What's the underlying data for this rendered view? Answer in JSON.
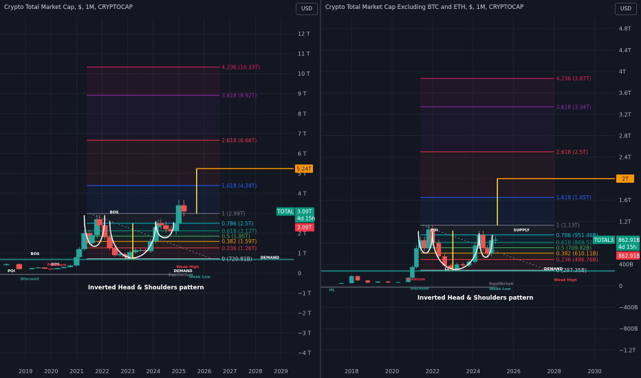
{
  "colors": {
    "background": "#131722",
    "grid": "#1e222d",
    "text": "#b2b5be",
    "up": "#26a69a",
    "down": "#ef5350",
    "fib_0": "#d1d4dc",
    "fib_0236": "#f23645",
    "fib_0382": "#ff9800",
    "fib_05": "#4caf50",
    "fib_0618": "#089981",
    "fib_0786": "#00bcd4",
    "fib_1": "#787b86",
    "fib_1618": "#2962ff",
    "fib_2618": "#f23645",
    "fib_3618": "#9c27b0",
    "fib_4236": "#e91e63",
    "target": "#ff9800",
    "pattern_arc": "#ffffff",
    "pattern_bar": "#ffeb3b"
  },
  "chart_data": [
    {
      "type": "candlestick",
      "title": "Crypto Total Market Cap, $, 1M, CRYPTOCAP",
      "currency_button": "USD",
      "x_ticks": [
        "2019",
        "2020",
        "2021",
        "2022",
        "2023",
        "2024",
        "2025",
        "2026",
        "2027",
        "2028",
        "2029"
      ],
      "y_ticks": [
        "12 T",
        "11 T",
        "10 T",
        "9 T",
        "8 T",
        "7 T",
        "6 T",
        "5 T",
        "4 T",
        "3 T",
        "2 T",
        "1 T",
        "0",
        "−1 T",
        "−2 T",
        "−3 T",
        "−4 T"
      ],
      "xlim": [
        2018.0,
        2029.5
      ],
      "ylim": [
        -4.4,
        12.8
      ],
      "y_unit": "T",
      "series": [
        {
          "name": "TOTAL",
          "x": [
            2018.25,
            2018.75,
            2019.25,
            2019.5,
            2019.75,
            2020.0,
            2020.25,
            2020.5,
            2020.75,
            2021.0,
            2021.1,
            2021.3,
            2021.5,
            2021.6,
            2021.8,
            2021.9,
            2022.1,
            2022.3,
            2022.5,
            2022.7,
            2022.9,
            2023.1,
            2023.3,
            2023.5,
            2023.7,
            2023.9,
            2024.1,
            2024.2,
            2024.3,
            2024.5,
            2024.7,
            2024.9,
            2025.0,
            2025.2
          ],
          "values": [
            0.45,
            0.2,
            0.25,
            0.28,
            0.22,
            0.2,
            0.25,
            0.3,
            0.38,
            0.8,
            1.2,
            2.0,
            1.5,
            1.9,
            2.7,
            2.4,
            1.8,
            1.25,
            0.9,
            0.95,
            0.82,
            1.05,
            1.15,
            1.15,
            1.1,
            1.6,
            2.3,
            2.5,
            2.4,
            2.2,
            2.1,
            2.5,
            3.4,
            3.09
          ]
        }
      ],
      "fib_levels": [
        {
          "label": "4.236 (10.33T)",
          "value": 10.33,
          "color": "#e91e63"
        },
        {
          "label": "3.618 (8.92T)",
          "value": 8.92,
          "color": "#9c27b0"
        },
        {
          "label": "2.618 (6.66T)",
          "value": 6.66,
          "color": "#f23645"
        },
        {
          "label": "1.618 (4.39T)",
          "value": 4.39,
          "color": "#2962ff"
        },
        {
          "label": "1 (2.99T)",
          "value": 2.99,
          "color": "#787b86"
        },
        {
          "label": "0.786 (2.5T)",
          "value": 2.5,
          "color": "#00bcd4"
        },
        {
          "label": "0.618 (2.12T)",
          "value": 2.12,
          "color": "#089981"
        },
        {
          "label": "0.5 (1.85T)",
          "value": 1.85,
          "color": "#4caf50"
        },
        {
          "label": "0.382 (1.59T)",
          "value": 1.59,
          "color": "#ff9800"
        },
        {
          "label": "0.236 (1.26T)",
          "value": 1.26,
          "color": "#f23645"
        },
        {
          "label": "0 (720.81B)",
          "value": 0.72,
          "color": "#d1d4dc"
        }
      ],
      "fib_x_range": [
        2021.4,
        2026.6
      ],
      "target": {
        "label": "5.24T",
        "value": 5.24,
        "x_from": 2025.7,
        "x_to": 2029.5,
        "drop_to": 2.99
      },
      "pattern_bar": {
        "x": 2023.2,
        "from": 0.72,
        "to": 2.5
      },
      "shoulders": [
        {
          "from": 2021.3,
          "to": 2022.1,
          "top": 2.9,
          "bottom": 1.3
        },
        {
          "from": 2022.3,
          "to": 2024.1,
          "top": 2.6,
          "bottom": 0.72
        },
        {
          "from": 2024.1,
          "to": 2024.8,
          "top": 2.55,
          "bottom": 1.75
        }
      ],
      "zones": [
        {
          "label": "BOS",
          "x": 2019.2,
          "y": 0.9,
          "color": "#ffffff"
        },
        {
          "label": "BOS",
          "x": 2020.0,
          "y": 0.38,
          "color": "#ffffff"
        },
        {
          "label": "BOS",
          "x": 2022.3,
          "y": 2.99,
          "color": "#ffffff"
        },
        {
          "label": "POI",
          "x": 2018.3,
          "y": 0.05,
          "color": "#ffffff"
        },
        {
          "label": "Premium",
          "x": 2019.85,
          "y": 0.35,
          "color": "#f23645"
        },
        {
          "label": "Discount",
          "x": 2018.8,
          "y": -0.35,
          "color": "#26a69a"
        },
        {
          "label": "DEMAND",
          "x": 2024.8,
          "y": 0.05,
          "color": "#ffffff"
        },
        {
          "label": "DEMAND",
          "x": 2028.2,
          "y": 0.72,
          "color": "#ffffff"
        },
        {
          "label": "Equilibrium",
          "x": 2024.6,
          "y": -0.15,
          "color": "#787b86"
        },
        {
          "label": "Weak High",
          "x": 2024.9,
          "y": 0.25,
          "color": "#f23645"
        },
        {
          "label": "Weak Low",
          "x": 2025.4,
          "y": -0.25,
          "color": "#26a69a"
        },
        {
          "label": "LL",
          "x": 2022.9,
          "y": 0.72,
          "color": "#ffffff"
        }
      ],
      "pattern_label": "Inverted Head & Shoulders pattern",
      "last_price": {
        "symbol": "TOTAL",
        "value": "3.09T",
        "countdown": "4d 15h",
        "close": "3.09T"
      }
    },
    {
      "type": "candlestick",
      "title": "Crypto Total Market Cap Excluding BTC and ETH, $, 1M, CRYPTOCAP",
      "currency_button": "USD",
      "x_ticks": [
        "2018",
        "2020",
        "2022",
        "2024",
        "2026",
        "2028",
        "2030"
      ],
      "y_ticks": [
        "4.8T",
        "4.4T",
        "4T",
        "3.6T",
        "3.2T",
        "2.8T",
        "2.4T",
        "2T",
        "1.6T",
        "1.2T",
        "800B",
        "400B",
        "0",
        "−400B",
        "−800B",
        "−1.2T"
      ],
      "xlim": [
        2016.5,
        2031.0
      ],
      "ylim": [
        -1.4,
        5.0
      ],
      "y_unit": "T",
      "series": [
        {
          "name": "TOTAL3",
          "x": [
            2017.5,
            2018.0,
            2018.3,
            2018.8,
            2019.3,
            2019.8,
            2020.3,
            2020.8,
            2021.0,
            2021.2,
            2021.4,
            2021.6,
            2021.8,
            2022.0,
            2022.3,
            2022.6,
            2022.9,
            2023.2,
            2023.5,
            2023.8,
            2024.1,
            2024.3,
            2024.5,
            2024.7,
            2024.9,
            2025.1
          ],
          "values": [
            0.05,
            0.18,
            0.1,
            0.06,
            0.08,
            0.06,
            0.07,
            0.15,
            0.35,
            0.7,
            0.85,
            0.7,
            1.05,
            0.8,
            0.55,
            0.38,
            0.32,
            0.4,
            0.38,
            0.45,
            0.75,
            0.95,
            0.7,
            0.6,
            0.85,
            0.86
          ]
        }
      ],
      "fib_levels": [
        {
          "label": "4.236 (3.87T)",
          "value": 3.87,
          "color": "#e91e63"
        },
        {
          "label": "3.618 (3.34T)",
          "value": 3.34,
          "color": "#9c27b0"
        },
        {
          "label": "2.618 (2.5T)",
          "value": 2.5,
          "color": "#f23645"
        },
        {
          "label": "1.618 (1.65T)",
          "value": 1.65,
          "color": "#2962ff"
        },
        {
          "label": "1 (1.13T)",
          "value": 1.13,
          "color": "#787b86"
        },
        {
          "label": "0.786 (951.46B)",
          "value": 0.95,
          "color": "#00bcd4"
        },
        {
          "label": "0.618 (809.52B)",
          "value": 0.81,
          "color": "#089981"
        },
        {
          "label": "0.5 (709.82B)",
          "value": 0.71,
          "color": "#4caf50"
        },
        {
          "label": "0.382 (610.11B)",
          "value": 0.61,
          "color": "#ff9800"
        },
        {
          "label": "0.236 (486.76B)",
          "value": 0.49,
          "color": "#f23645"
        },
        {
          "label": "0 (287.35B)",
          "value": 0.29,
          "color": "#d1d4dc"
        }
      ],
      "fib_x_range": [
        2021.4,
        2028.0
      ],
      "target": {
        "label": "2T",
        "value": 2.0,
        "x_from": 2025.2,
        "x_to": 2031.0,
        "drop_to": 1.13
      },
      "pattern_bar": {
        "x": 2023.0,
        "from": 0.29,
        "to": 1.03
      },
      "shoulders": [
        {
          "from": 2021.3,
          "to": 2022.0,
          "top": 1.02,
          "bottom": 0.6
        },
        {
          "from": 2022.0,
          "to": 2024.3,
          "top": 0.98,
          "bottom": 0.29
        },
        {
          "from": 2024.3,
          "to": 2024.95,
          "top": 0.95,
          "bottom": 0.52
        }
      ],
      "zones": [
        {
          "label": "POI",
          "x": 2021.9,
          "y": 1.02,
          "color": "#ffffff"
        },
        {
          "label": "SUPPLY",
          "x": 2026.0,
          "y": 1.02,
          "color": "#ffffff"
        },
        {
          "label": "DEMAND",
          "x": 2027.5,
          "y": 0.29,
          "color": "#ffffff"
        },
        {
          "label": "Premium",
          "x": 2020.7,
          "y": 0.1,
          "color": "#f23645"
        },
        {
          "label": "Discount",
          "x": 2020.9,
          "y": -0.07,
          "color": "#26a69a"
        },
        {
          "label": "Equilibrium",
          "x": 2024.8,
          "y": 0.02,
          "color": "#787b86"
        },
        {
          "label": "Weak High",
          "x": 2028.0,
          "y": 0.09,
          "color": "#f23645"
        },
        {
          "label": "Weak Low",
          "x": 2024.8,
          "y": -0.08,
          "color": "#26a69a"
        },
        {
          "label": "HL",
          "x": 2016.9,
          "y": -0.1,
          "color": "#26a69a"
        },
        {
          "label": "LL",
          "x": 2022.6,
          "y": 0.29,
          "color": "#ffffff"
        }
      ],
      "pattern_label": "Inverted Head & Shoulders pattern",
      "last_price": {
        "symbol": "TOTAL3",
        "value": "862.91B",
        "countdown": "4d 15h",
        "close": "862.91B"
      }
    }
  ]
}
